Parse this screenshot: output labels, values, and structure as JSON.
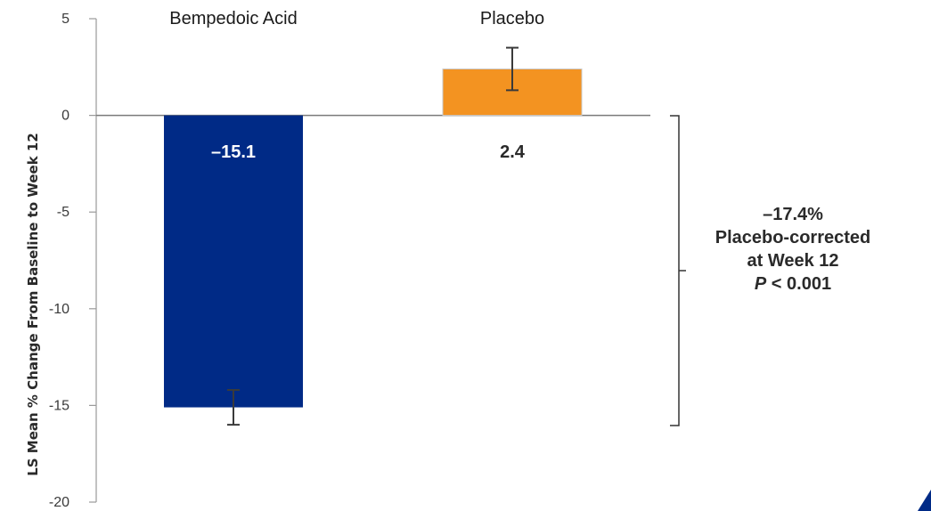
{
  "chart_data": {
    "type": "bar",
    "categories": [
      "Bempedoic Acid",
      "Placebo"
    ],
    "values": [
      -15.1,
      2.4
    ],
    "value_labels": [
      "–15.1",
      "2.4"
    ],
    "error_bars": [
      [
        -16.0,
        -14.2
      ],
      [
        1.3,
        3.5
      ]
    ],
    "colors": [
      "#002A86",
      "#F39321"
    ],
    "ylabel": "LS Mean % Change From Baseline to Week 12",
    "xlabel": "",
    "ylim": [
      -20,
      5
    ],
    "yticks": [
      5,
      0,
      -5,
      -10,
      -15,
      -20
    ],
    "grid": false,
    "annotation": {
      "difference": "–17.4%",
      "line2": "Placebo-corrected",
      "line3": "at Week 12",
      "p_prefix": "P",
      "p_suffix": " < 0.001"
    }
  }
}
